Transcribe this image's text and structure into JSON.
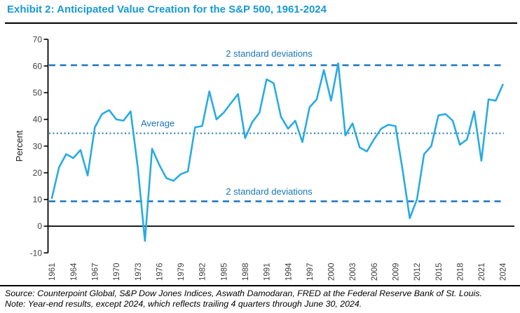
{
  "header": {
    "title": "Exhibit 2: Anticipated Value Creation for the S&P 500, 1961-2024"
  },
  "chart_data": {
    "type": "line",
    "title": "Anticipated Value Creation for the S&P 500, 1961-2024",
    "ylabel": "Percent",
    "ylim": [
      -10,
      70
    ],
    "ytick_interval": 10,
    "grid": false,
    "legend": "none",
    "series_color": "#29ABE2",
    "reference_color": "#1C75BC",
    "x": [
      1961,
      1962,
      1963,
      1964,
      1965,
      1966,
      1967,
      1968,
      1969,
      1970,
      1971,
      1972,
      1973,
      1974,
      1975,
      1976,
      1977,
      1978,
      1979,
      1980,
      1981,
      1982,
      1983,
      1984,
      1985,
      1986,
      1987,
      1988,
      1989,
      1990,
      1991,
      1992,
      1993,
      1994,
      1995,
      1996,
      1997,
      1998,
      1999,
      2000,
      2001,
      2002,
      2003,
      2004,
      2005,
      2006,
      2007,
      2008,
      2009,
      2010,
      2011,
      2012,
      2013,
      2014,
      2015,
      2016,
      2017,
      2018,
      2019,
      2020,
      2021,
      2022,
      2023,
      2024
    ],
    "values": [
      10.5,
      22,
      27,
      25.5,
      28.5,
      19,
      37,
      42,
      43.5,
      40,
      39.5,
      43,
      22,
      -5.5,
      29,
      23,
      18,
      17,
      19.5,
      20.5,
      37,
      37.5,
      50.5,
      40,
      42.5,
      46,
      49.5,
      33,
      39,
      42.5,
      55,
      53.5,
      41,
      36.5,
      39.5,
      31.5,
      44.5,
      47.5,
      58.5,
      47,
      61,
      34,
      38.5,
      29.5,
      28,
      32.5,
      36.5,
      38,
      37.5,
      21,
      3,
      10,
      27,
      30,
      41.5,
      42,
      39.5,
      30.5,
      32.5,
      43,
      24.5,
      47.5,
      47,
      53
    ],
    "x_tick_labels": [
      "1961",
      "1964",
      "1967",
      "1970",
      "1973",
      "1976",
      "1979",
      "1982",
      "1985",
      "1988",
      "1991",
      "1994",
      "1997",
      "2000",
      "2003",
      "2006",
      "2009",
      "2012",
      "2015",
      "2018",
      "2021",
      "2024"
    ],
    "y_tick_labels": [
      "-10",
      "0",
      "10",
      "20",
      "30",
      "40",
      "50",
      "60",
      "70"
    ],
    "reference_lines": [
      {
        "label": "2 standard deviations",
        "value": 60.3,
        "style": "dashed"
      },
      {
        "label": "Average",
        "value": 34.8,
        "style": "dotted"
      },
      {
        "label": "2 standard deviations",
        "value": 9.3,
        "style": "dashed"
      }
    ],
    "zero_line_value": 0
  },
  "footer": {
    "source": "Source: Counterpoint Global, S&P Dow Jones Indices, Aswath Damodaran, FRED at the Federal Reserve Bank of St. Louis.",
    "note": "Note: Year-end results, except 2024, which reflects trailing 4 quarters through June 30, 2024."
  }
}
